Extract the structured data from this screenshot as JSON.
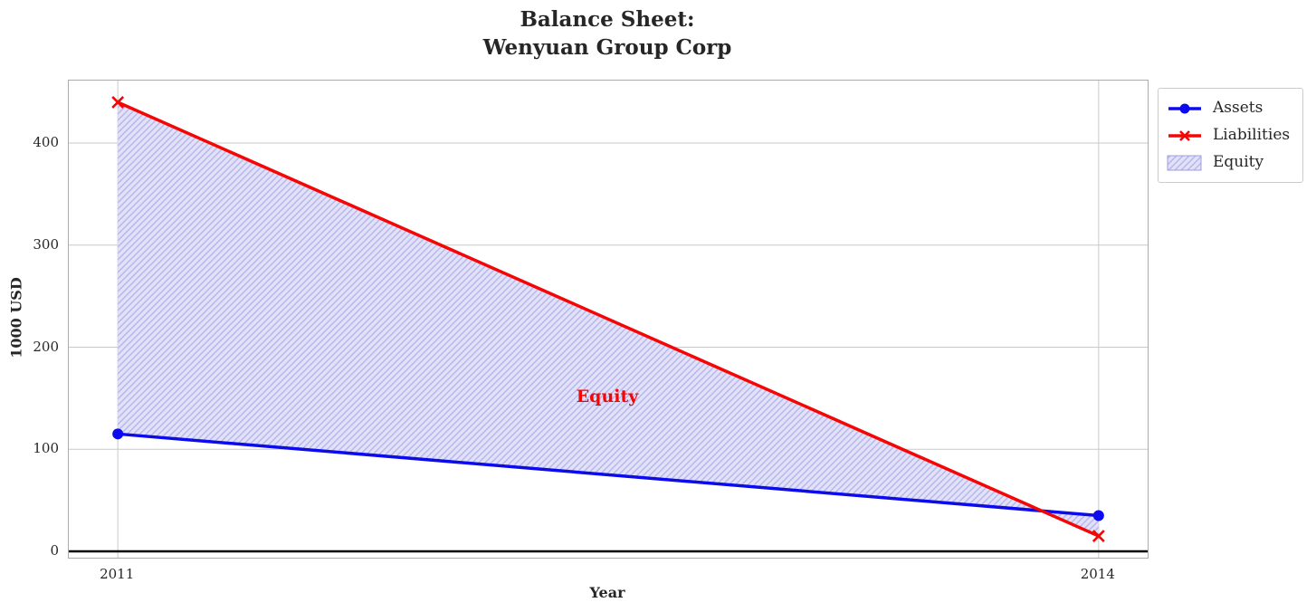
{
  "chart_data": {
    "type": "line",
    "title": "Balance Sheet:\nWenyuan Group Corp",
    "xlabel": "Year",
    "ylabel": "1000 USD",
    "x": [
      2011,
      2014
    ],
    "series": [
      {
        "name": "Assets",
        "values": [
          115,
          35
        ],
        "color": "#0b0bee",
        "marker": "circle",
        "line_width": 3.5
      },
      {
        "name": "Liabilities",
        "values": [
          440,
          15
        ],
        "color": "#f60505",
        "marker": "x",
        "line_width": 3.5
      }
    ],
    "equity_fill": {
      "label": "Equity",
      "between": [
        "Assets",
        "Liabilities"
      ],
      "fill_color": "#e1e1f8",
      "hatch_color": "#b6b6ec",
      "hatch": "//",
      "edge_color": "#9d9de0"
    },
    "annotation": {
      "text": "Equity",
      "x": 2012.5,
      "y": 151,
      "color": "#f60505"
    },
    "xlim": [
      2010.85,
      2014.15
    ],
    "ylim": [
      -6.25,
      461.25
    ],
    "xtick_values": [
      2011,
      2014
    ],
    "xtick_labels": [
      "2011",
      "2014"
    ],
    "ytick_values": [
      0,
      100,
      200,
      300,
      400
    ],
    "ytick_labels": [
      "0",
      "100",
      "200",
      "300",
      "400"
    ],
    "zero_line": {
      "y": 0,
      "color": "#000000",
      "width": 2.5
    },
    "grid": true,
    "grid_color": "#c9c9c9",
    "spine_color": "#ababab",
    "text_color": "#262626",
    "legend": {
      "position": "upper right outside",
      "entries": [
        "Assets",
        "Liabilities",
        "Equity"
      ]
    }
  }
}
